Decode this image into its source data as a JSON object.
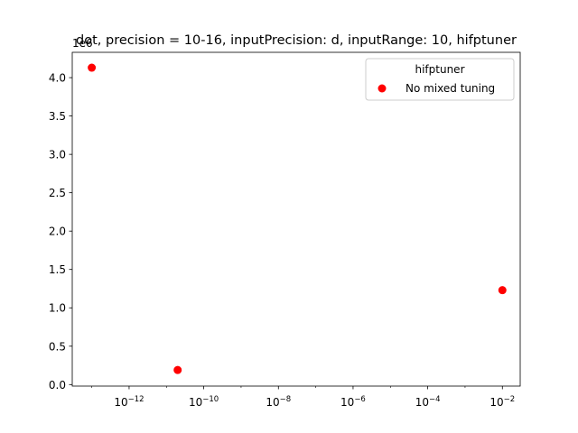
{
  "chart_data": {
    "type": "scatter",
    "title": "dot, precision = 10-16, inputPrecision: d, inputRange: 10, hifptuner",
    "xlabel": "",
    "ylabel": "",
    "x_scale": "log",
    "xlim": [
      3e-14,
      0.03
    ],
    "ylim": [
      -0.02,
      4.33
    ],
    "y_offset_text": "1e6",
    "x_ticks": [
      1e-12,
      1e-10,
      1e-08,
      1e-06,
      0.0001,
      0.01
    ],
    "x_tick_labels": [
      {
        "base": "10",
        "exp": "−12"
      },
      {
        "base": "10",
        "exp": "−10"
      },
      {
        "base": "10",
        "exp": "−8"
      },
      {
        "base": "10",
        "exp": "−6"
      },
      {
        "base": "10",
        "exp": "−4"
      },
      {
        "base": "10",
        "exp": "−2"
      }
    ],
    "y_ticks": [
      0.0,
      0.5,
      1.0,
      1.5,
      2.0,
      2.5,
      3.0,
      3.5,
      4.0
    ],
    "y_tick_labels": [
      "0.0",
      "0.5",
      "1.0",
      "1.5",
      "2.0",
      "2.5",
      "3.0",
      "3.5",
      "4.0"
    ],
    "grid": false,
    "legend": {
      "title": "hifptuner",
      "position": "top-right",
      "entries": [
        {
          "label": "No mixed tuning",
          "color": "#ff0000"
        }
      ]
    },
    "series": [
      {
        "name": "No mixed tuning",
        "color": "#ff0000",
        "points": [
          {
            "x": 1e-13,
            "y": 4.13
          },
          {
            "x": 2e-11,
            "y": 0.19
          },
          {
            "x": 0.01,
            "y": 1.23
          }
        ]
      }
    ]
  }
}
